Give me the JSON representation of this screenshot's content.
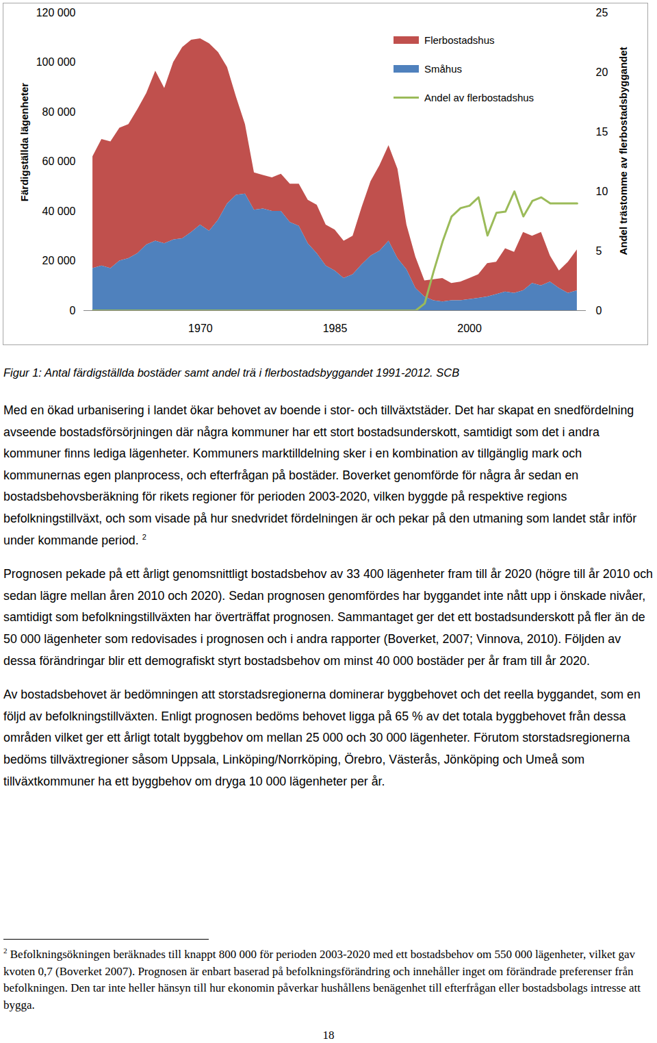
{
  "chart_data": {
    "type": "area",
    "stacked": true,
    "x": [
      1958,
      1959,
      1960,
      1961,
      1962,
      1963,
      1964,
      1965,
      1966,
      1967,
      1968,
      1969,
      1970,
      1971,
      1972,
      1973,
      1974,
      1975,
      1976,
      1977,
      1978,
      1979,
      1980,
      1981,
      1982,
      1983,
      1984,
      1985,
      1986,
      1987,
      1988,
      1989,
      1990,
      1991,
      1992,
      1993,
      1994,
      1995,
      1996,
      1997,
      1998,
      1999,
      2000,
      2001,
      2002,
      2003,
      2004,
      2005,
      2006,
      2007,
      2008,
      2009,
      2010,
      2011,
      2012
    ],
    "xlim": [
      1957,
      2013
    ],
    "xticks": [
      1970,
      1985,
      2000
    ],
    "ylim": [
      0,
      120000
    ],
    "yticks": [
      0,
      {
        "value": 20000,
        "label": "20 000"
      },
      {
        "value": 40000,
        "label": "40 000"
      },
      {
        "value": 60000,
        "label": "60 000"
      },
      {
        "value": 80000,
        "label": "80 000"
      },
      {
        "value": 100000,
        "label": "100 000"
      },
      {
        "value": 120000,
        "label": "120 000"
      }
    ],
    "ylabel": "Färdigställda lägenheter",
    "y2lim": [
      0,
      25
    ],
    "y2ticks": [
      0,
      5,
      10,
      15,
      20,
      25
    ],
    "y2label": "Andel trästomme av flerbostadsbyggandet",
    "legend": "top",
    "series": [
      {
        "name": "Flerbostadshus",
        "color": "#c0504d",
        "values": [
          45000,
          51000,
          51000,
          53500,
          54000,
          58000,
          61000,
          68500,
          62500,
          71500,
          77000,
          77500,
          75000,
          75500,
          67500,
          55000,
          39500,
          28000,
          15000,
          13500,
          13500,
          15000,
          15500,
          17000,
          17500,
          19500,
          16500,
          16500,
          15000,
          15500,
          23000,
          30000,
          34500,
          38500,
          36000,
          18000,
          12500,
          6500,
          8500,
          9500,
          7000,
          7500,
          8500,
          9500,
          13500,
          13000,
          17500,
          16500,
          23500,
          19000,
          21500,
          10500,
          7000,
          12500,
          16500
        ]
      },
      {
        "name": "Småhus",
        "color": "#4f81bd",
        "values": [
          17000,
          18000,
          17000,
          20000,
          21000,
          23000,
          26500,
          28000,
          27000,
          28500,
          29000,
          31500,
          34500,
          32000,
          36500,
          43000,
          46500,
          47000,
          40500,
          41000,
          40000,
          40000,
          35500,
          34000,
          27000,
          23000,
          18000,
          16000,
          13000,
          14500,
          18500,
          22000,
          24000,
          28000,
          21000,
          16500,
          9000,
          5500,
          4000,
          3500,
          4000,
          4000,
          4500,
          5000,
          5500,
          6500,
          7500,
          7000,
          8000,
          11000,
          10000,
          11500,
          9000,
          7000,
          8000
        ]
      },
      {
        "name": "Andel av flerbostadshus",
        "type": "line",
        "axis": "y2",
        "color": "#9bbb59",
        "values": [
          0,
          0,
          0,
          0,
          0,
          0,
          0,
          0,
          0,
          0,
          0,
          0,
          0,
          0,
          0,
          0,
          0,
          0,
          0,
          0,
          0,
          0,
          0,
          0,
          0,
          0,
          0,
          0,
          0,
          0,
          0,
          0,
          0,
          0,
          0,
          0,
          0,
          0.6,
          3.3,
          5.8,
          7.9,
          8.6,
          8.8,
          9.5,
          6.3,
          8.2,
          8.3,
          10,
          7.9,
          9.2,
          9.5,
          9.0,
          9.0,
          9.0,
          9.0
        ]
      }
    ]
  },
  "caption": "Figur 1: Antal färdigställda bostäder samt andel trä i flerbostadsbyggandet 1991-2012. SCB",
  "paragraphs": [
    {
      "text": "Med en ökad urbanisering i landet ökar behovet av boende i stor- och tillväxtstäder. Det har skapat en snedfördelning avseende bostadsförsörjningen där några kommuner har ett stort bostadsunderskott, samtidigt som det i andra kommuner finns lediga lägenheter. Kommuners marktilldelning sker i en kombination av tillgänglig mark och kommunernas egen planprocess, och efterfrågan på bostäder. Boverket genomförde för några år sedan en bostadsbehovsberäkning för rikets regioner för perioden 2003-2020, vilken byggde på respektive regions befolkningstillväxt, och som visade på hur snedvridet fördelningen är och pekar på den utmaning som landet står inför under kommande period.",
      "note": "2"
    },
    {
      "text": "Prognosen pekade på ett årligt genomsnittligt bostadsbehov av 33 400 lägenheter fram till år 2020 (högre till år 2010 och sedan lägre mellan åren 2010 och 2020). Sedan prognosen genomfördes har byggandet inte nått upp i önskade nivåer, samtidigt som befolkningstillväxten har överträffat prognosen. Sammantaget ger det ett bostadsunderskott på fler än de 50 000 lägenheter som redovisades i prognosen och i andra rapporter (Boverket, 2007; Vinnova, 2010). Följden av dessa förändringar blir ett demografiskt styrt bostadsbehov om minst 40 000 bostäder per år fram till år 2020."
    },
    {
      "text": "Av bostadsbehovet är bedömningen att storstadsregionerna dominerar byggbehovet och det reella byggandet, som en följd av befolkningstillväxten. Enligt prognosen bedöms behovet ligga på 65 % av det totala byggbehovet från dessa områden vilket ger ett årligt totalt byggbehov om mellan 25 000 och 30 000 lägenheter. Förutom storstadsregionerna bedöms tillväxtregioner såsom Uppsala, Linköping/Norrköping, Örebro, Västerås, Jönköping och Umeå som tillväxtkommuner ha ett byggbehov om dryga 10 000 lägenheter per år."
    }
  ],
  "footnote": {
    "mark": "2",
    "text": "Befolkningsökningen beräknades till knappt 800 000 för perioden 2003-2020 med ett bostadsbehov om 550 000 lägenheter, vilket gav kvoten 0,7 (Boverket 2007). Prognosen är enbart baserad på befolkningsförändring och innehåller inget om förändrade preferenser från befolkningen. Den tar inte heller hänsyn till hur ekonomin påverkar hushållens benägenhet till efterfrågan eller bostadsbolags intresse att bygga."
  },
  "page_number": "18"
}
